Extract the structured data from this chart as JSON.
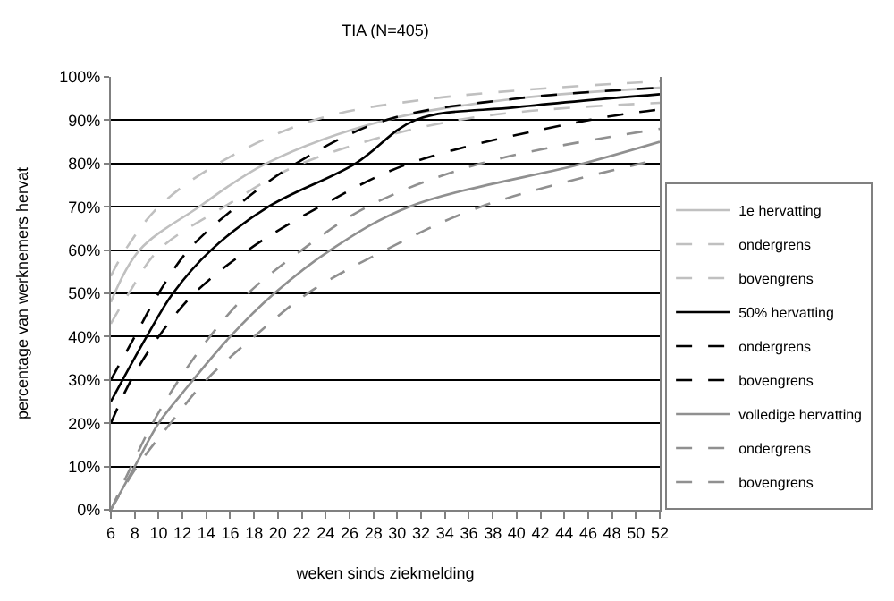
{
  "chart_data": {
    "type": "line",
    "title": "TIA (N=405)",
    "xlabel": "weken sinds ziekmelding",
    "ylabel": "percentage van werknemers hervat",
    "xlim": [
      6,
      52
    ],
    "xticks": [
      6,
      8,
      10,
      12,
      14,
      16,
      18,
      20,
      22,
      24,
      26,
      28,
      30,
      32,
      34,
      36,
      38,
      40,
      42,
      44,
      46,
      48,
      50,
      52
    ],
    "ylim": [
      0,
      100
    ],
    "yticks": [
      {
        "value": 0,
        "label": "0%"
      },
      {
        "value": 10,
        "label": "10%"
      },
      {
        "value": 20,
        "label": "20%"
      },
      {
        "value": 30,
        "label": "30%"
      },
      {
        "value": 40,
        "label": "40%"
      },
      {
        "value": 50,
        "label": "50%"
      },
      {
        "value": 60,
        "label": "60%"
      },
      {
        "value": 70,
        "label": "70%"
      },
      {
        "value": 80,
        "label": "80%"
      },
      {
        "value": 90,
        "label": "90%"
      },
      {
        "value": 100,
        "label": "100%"
      }
    ],
    "grid": "y",
    "legend": "bottom right",
    "marker": "none",
    "series": [
      {
        "name": "1e hervatting",
        "color": "#c0c0c0",
        "line_style": "solid",
        "x": [
          6,
          8.4,
          13.4,
          19,
          29,
          40,
          52
        ],
        "values": [
          48,
          60,
          70,
          80,
          90,
          95,
          97.5
        ]
      },
      {
        "name": "ondergrens",
        "color": "#c0c0c0",
        "line_style": "dashed",
        "x": [
          6,
          7.5,
          10,
          15.5,
          22,
          35,
          52
        ],
        "values": [
          43,
          50,
          60,
          70,
          80,
          90,
          94
        ]
      },
      {
        "name": "bovengrens",
        "color": "#c0c0c0",
        "line_style": "dashed",
        "x": [
          6,
          7.2,
          10,
          15,
          23,
          33,
          52
        ],
        "values": [
          54,
          60,
          70,
          80,
          90,
          95,
          99
        ]
      },
      {
        "name": "50% hervatting",
        "color": "#000000",
        "line_style": "solid",
        "x": [
          6,
          9,
          11.2,
          14.4,
          19.2,
          26.5,
          31.5,
          40,
          52
        ],
        "values": [
          25,
          40,
          50,
          60,
          70,
          80,
          90,
          93,
          96
        ]
      },
      {
        "name": "ondergrens",
        "color": "#000000",
        "line_style": "dashed",
        "x": [
          6,
          7.7,
          10,
          13,
          17.5,
          23.5,
          31,
          46,
          52
        ],
        "values": [
          20,
          30,
          40,
          50,
          60,
          70,
          80,
          90,
          92.5
        ]
      },
      {
        "name": "bovengrens",
        "color": "#000000",
        "line_style": "dashed",
        "x": [
          6,
          8,
          10,
          12.5,
          16.5,
          21.5,
          29,
          40,
          52
        ],
        "values": [
          30,
          40,
          50,
          60,
          70,
          80,
          90,
          95,
          97.5
        ]
      },
      {
        "name": "volledige hervatting",
        "color": "#909090",
        "line_style": "solid",
        "x": [
          6,
          8,
          10,
          12,
          16,
          19.7,
          24.4,
          31,
          45.6,
          52
        ],
        "values": [
          0,
          10,
          20,
          27,
          40,
          50,
          60,
          70,
          80,
          85
        ]
      },
      {
        "name": "ondergrens",
        "color": "#909090",
        "line_style": "dashed",
        "x": [
          6,
          8.2,
          11,
          14,
          18,
          22.5,
          29,
          37,
          52
        ],
        "values": [
          0,
          10,
          20,
          30,
          40,
          50,
          60,
          70,
          81
        ]
      },
      {
        "name": "bovengrens",
        "color": "#909090",
        "line_style": "dashed",
        "x": [
          6,
          7.7,
          9.5,
          11.7,
          14.3,
          17.5,
          22,
          27.5,
          37,
          52
        ],
        "values": [
          0,
          10,
          20,
          30,
          40,
          50,
          60,
          70,
          80,
          88
        ]
      }
    ]
  }
}
